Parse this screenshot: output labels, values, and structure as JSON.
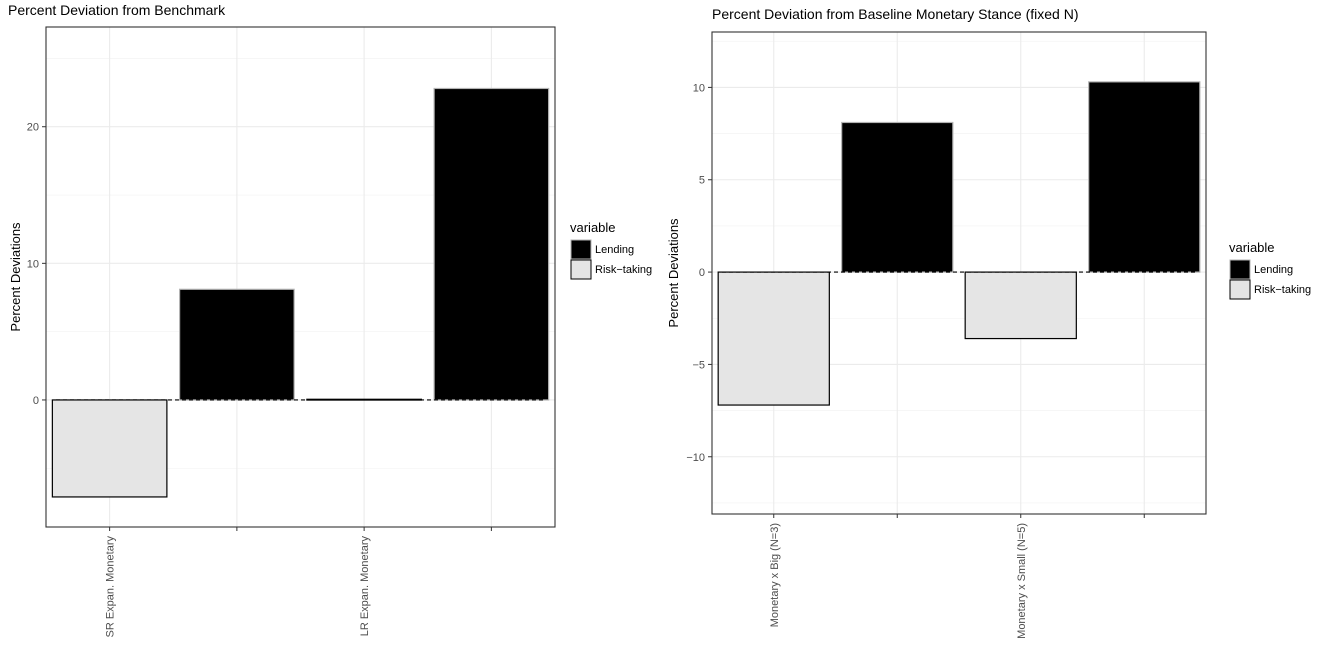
{
  "chart_data": [
    {
      "type": "bar",
      "title": "Percent Deviation from Benchmark",
      "ylabel": "Percent Deviations",
      "xlabel": "",
      "categories": [
        "SR Expan. Monetary",
        "",
        "LR Expan. Monetary",
        ""
      ],
      "series": [
        {
          "name": "Lending",
          "color": "#000000",
          "values": [
            null,
            8.1,
            null,
            22.8
          ]
        },
        {
          "name": "Risk−taking",
          "color": "#e5e5e5",
          "values": [
            -7.1,
            null,
            0.05,
            null
          ]
        }
      ],
      "yticks": [
        0,
        10,
        20
      ],
      "ytick_labels": [
        "0",
        "10",
        "20"
      ],
      "ylim": [
        -9.3,
        27.3
      ],
      "grid": true,
      "reference_line": 0,
      "legend": {
        "title": "variable",
        "position": "right"
      }
    },
    {
      "type": "bar",
      "title": "Percent Deviation from Baseline Monetary Stance (fixed N)",
      "ylabel": "Percent Deviations",
      "xlabel": "",
      "categories": [
        "Monetary x Big (N=3)",
        "",
        "Monetary x Small (N=5)",
        ""
      ],
      "series": [
        {
          "name": "Lending",
          "color": "#000000",
          "values": [
            null,
            8.1,
            null,
            10.3
          ]
        },
        {
          "name": "Risk−taking",
          "color": "#e5e5e5",
          "values": [
            -7.2,
            null,
            -3.6,
            null
          ]
        }
      ],
      "yticks": [
        -10,
        -5,
        0,
        5,
        10
      ],
      "ytick_labels": [
        "−10",
        "−5",
        "0",
        "5",
        "10"
      ],
      "ylim": [
        -13.1,
        13.0
      ],
      "grid": true,
      "reference_line": 0,
      "legend": {
        "title": "variable",
        "position": "right"
      }
    }
  ]
}
